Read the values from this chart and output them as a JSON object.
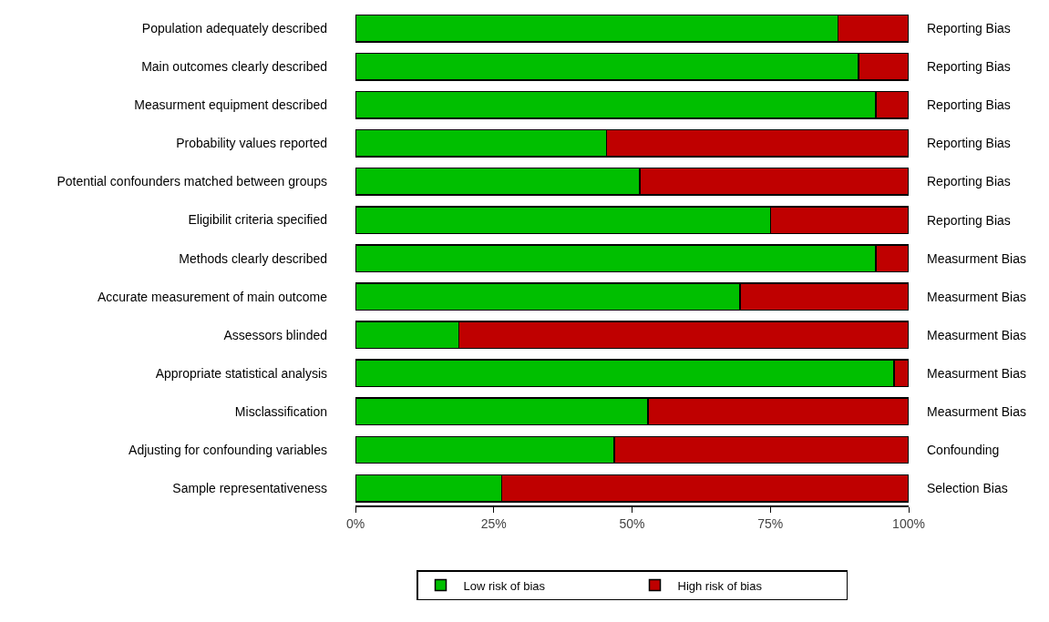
{
  "chart_data": {
    "type": "bar",
    "orientation": "horizontal",
    "stacked": true,
    "categories": [
      "Population adequately described",
      "Main outcomes clearly described",
      "Measurment equipment described",
      "Probability values reported",
      "Potential confounders matched between groups",
      "Eligibilit criteria specified",
      "Methods clearly described",
      "Accurate measurement of main outcome",
      "Assessors blinded",
      "Appropriate statistical analysis",
      "Misclassification",
      "Adjusting for confounding variables",
      "Sample representativeness"
    ],
    "y2_categories": [
      "Reporting Bias",
      "Reporting Bias",
      "Reporting Bias",
      "Reporting Bias",
      "Reporting Bias",
      "Reporting Bias",
      "Measurment Bias",
      "Measurment Bias",
      "Measurment Bias",
      "Measurment Bias",
      "Measurment Bias",
      "Confounding",
      "Selection Bias"
    ],
    "series": [
      {
        "name": "Low risk of bias",
        "color": "#00bf00",
        "values": [
          87.2,
          90.9,
          94.1,
          45.4,
          51.4,
          75.0,
          94.1,
          69.5,
          18.7,
          97.4,
          52.9,
          46.8,
          26.4
        ]
      },
      {
        "name": "High risk of bias",
        "color": "#bf0000",
        "values": [
          12.8,
          9.1,
          5.9,
          54.6,
          48.6,
          25.0,
          5.9,
          30.5,
          81.3,
          2.6,
          47.1,
          53.2,
          73.6
        ]
      }
    ],
    "xlim": [
      0,
      100
    ],
    "xticks": [
      {
        "value": 0,
        "label": "0%"
      },
      {
        "value": 25,
        "label": "25%"
      },
      {
        "value": 50,
        "label": "50%"
      },
      {
        "value": 75,
        "label": "75%"
      },
      {
        "value": 100,
        "label": "100%"
      }
    ],
    "legend": "bottom"
  }
}
